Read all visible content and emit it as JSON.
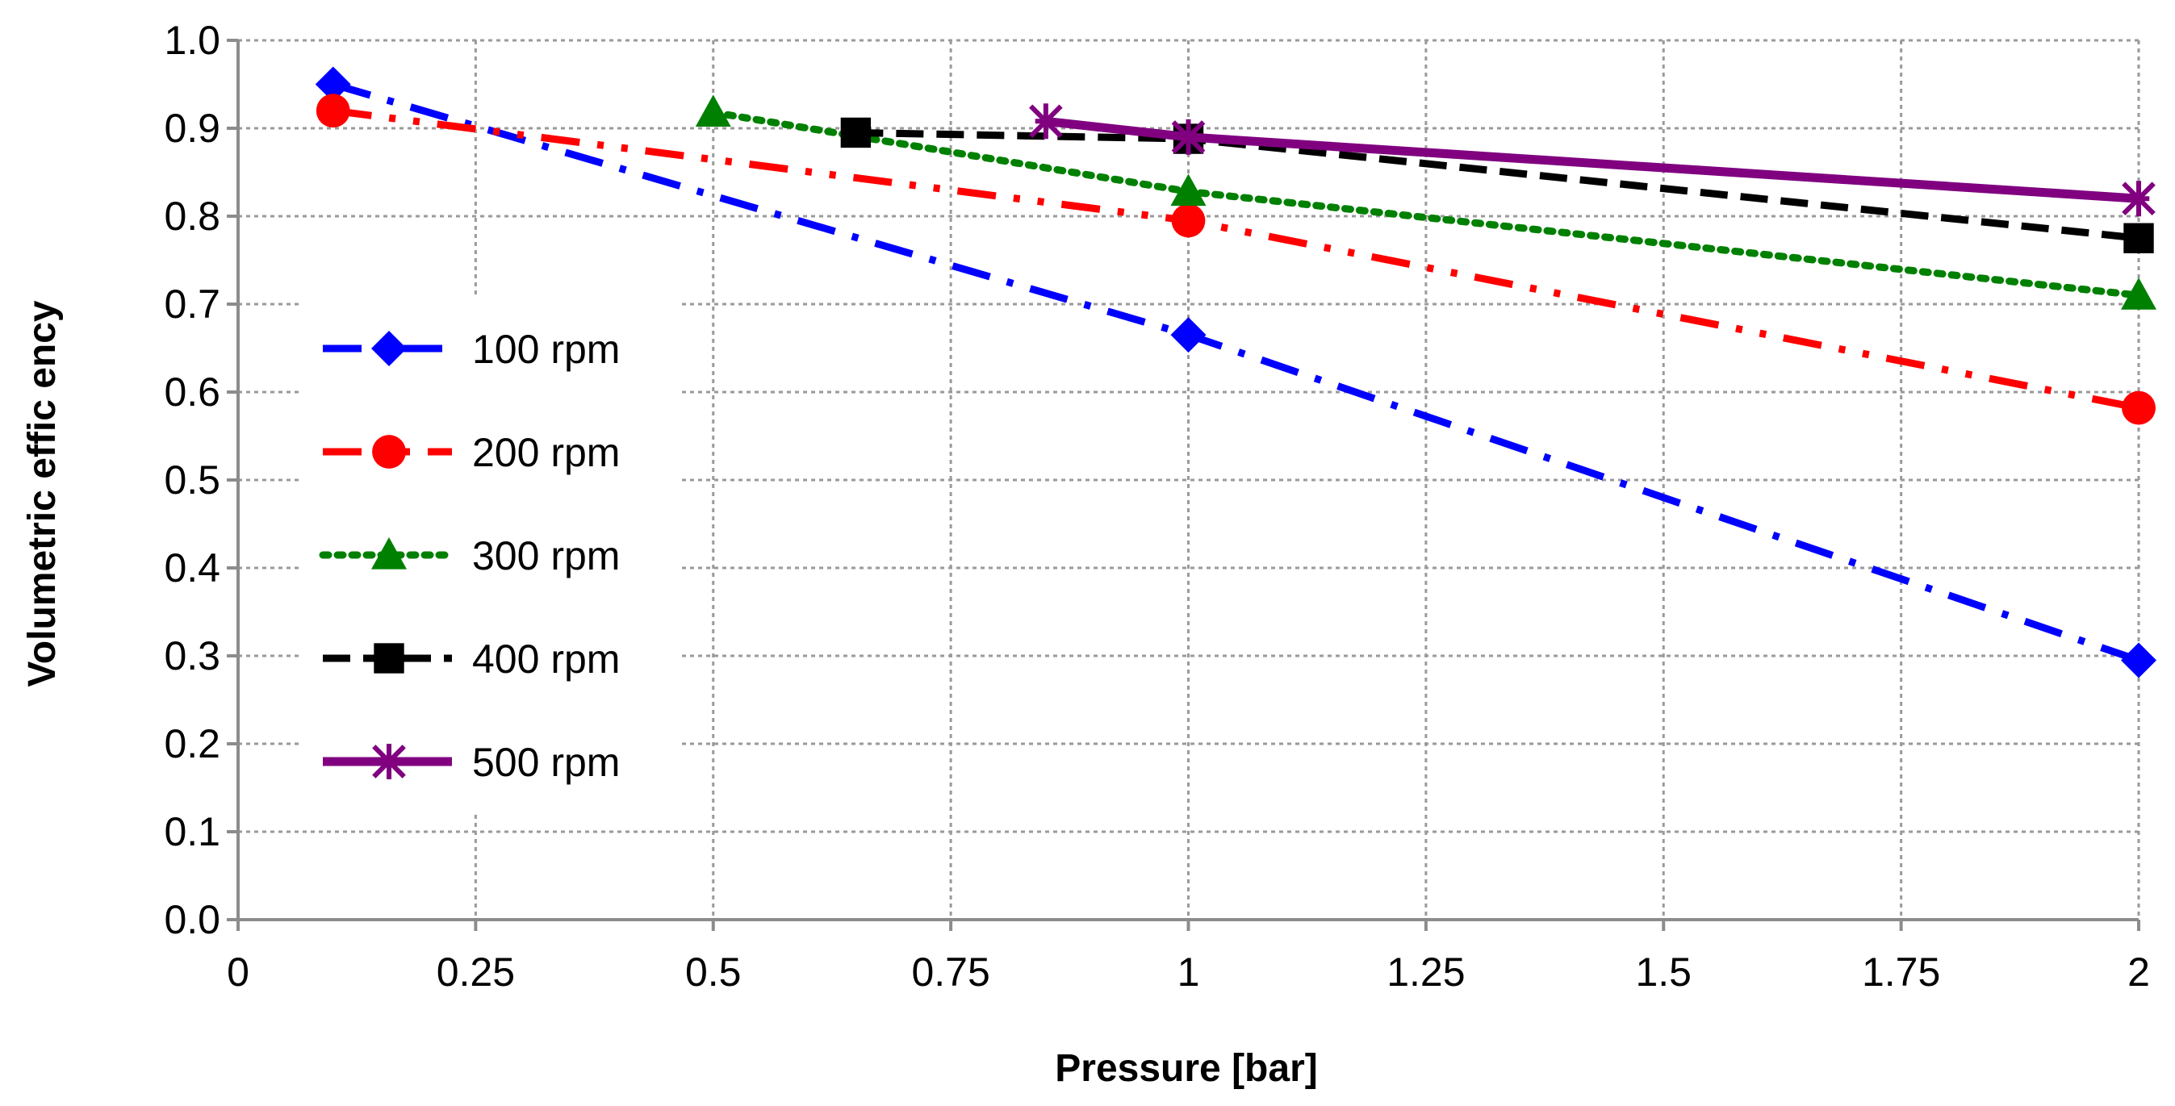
{
  "chart_data": {
    "type": "line",
    "title": "",
    "xlabel": "Pressure [bar]",
    "ylabel": "Volumetric effic ency",
    "xlim": [
      0,
      2
    ],
    "ylim": [
      0,
      1
    ],
    "x_ticks": [
      "0",
      "0.25",
      "0.5",
      "0.75",
      "1",
      "1.25",
      "1.5",
      "1.75",
      "2"
    ],
    "y_ticks": [
      "0.0",
      "0.1",
      "0.2",
      "0.3",
      "0.4",
      "0.5",
      "0.6",
      "0.7",
      "0.8",
      "0.9",
      "1.0"
    ],
    "grid": true,
    "legend_position": "left-middle",
    "series": [
      {
        "name": "100 rpm",
        "x": [
          0.1,
          1,
          2
        ],
        "values": [
          0.95,
          0.665,
          0.295
        ],
        "color": "#0000ff",
        "marker": "diamond",
        "dash": "dashdot"
      },
      {
        "name": "200 rpm",
        "x": [
          0.1,
          1,
          2
        ],
        "values": [
          0.92,
          0.795,
          0.582
        ],
        "color": "#ff0000",
        "marker": "circle",
        "dash": "dashdotdot"
      },
      {
        "name": "300 rpm",
        "x": [
          0.5,
          1,
          2
        ],
        "values": [
          0.918,
          0.828,
          0.71
        ],
        "color": "#008000",
        "marker": "triangle",
        "dash": "dot"
      },
      {
        "name": "400 rpm",
        "x": [
          0.65,
          1,
          2
        ],
        "values": [
          0.895,
          0.888,
          0.775
        ],
        "color": "#000000",
        "marker": "square",
        "dash": "dash"
      },
      {
        "name": "500 rpm",
        "x": [
          0.85,
          1,
          2
        ],
        "values": [
          0.908,
          0.89,
          0.82
        ],
        "color": "#800080",
        "marker": "asterisk",
        "dash": "solid"
      }
    ]
  }
}
